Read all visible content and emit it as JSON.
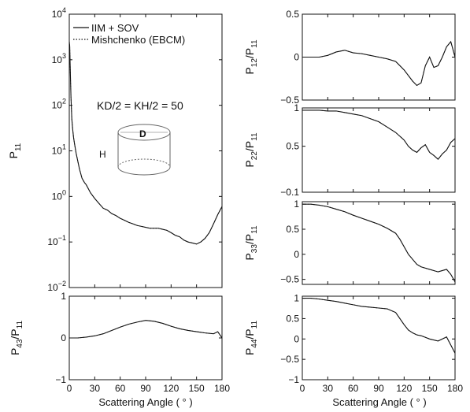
{
  "figure": {
    "left_xlabel": "Scattering Angle ( ° )",
    "right_xlabel": "Scattering Angle ( ° )",
    "annotation": "KD/2 = KH/2 = 50",
    "cylinder_label_top": "D",
    "cylinder_label_side": "H"
  },
  "legend": {
    "solid": "IIM + SOV",
    "dotted": "Mishchenko (EBCM)"
  },
  "chart_data": [
    {
      "id": "p11",
      "type": "line",
      "ylabel": "P_11",
      "yscale": "log",
      "ylim": [
        0.01,
        10000
      ],
      "xlim": [
        0,
        180
      ],
      "xticks": [
        0,
        30,
        60,
        90,
        120,
        150,
        180
      ],
      "yticks": [
        0.01,
        0.1,
        1,
        10,
        100,
        1000,
        10000
      ],
      "ytick_labels": [
        "10^-2",
        "10^-1",
        "10^0",
        "10^1",
        "10^2",
        "10^3",
        "10^4"
      ],
      "legend": "top-left",
      "series": [
        {
          "name": "IIM + SOV",
          "style": "solid",
          "x": [
            0,
            0.5,
            1,
            2,
            3,
            4,
            5,
            6,
            8,
            10,
            12,
            15,
            18,
            20,
            25,
            30,
            35,
            40,
            45,
            50,
            55,
            60,
            65,
            70,
            75,
            80,
            85,
            90,
            95,
            100,
            105,
            110,
            115,
            120,
            125,
            130,
            135,
            140,
            145,
            150,
            155,
            160,
            165,
            170,
            175,
            180
          ],
          "y": [
            2500,
            2000,
            800,
            150,
            50,
            30,
            20,
            15,
            9,
            6,
            4,
            2.5,
            2,
            1.8,
            1.2,
            0.9,
            0.7,
            0.55,
            0.5,
            0.42,
            0.38,
            0.33,
            0.3,
            0.27,
            0.25,
            0.23,
            0.22,
            0.21,
            0.2,
            0.2,
            0.2,
            0.19,
            0.18,
            0.16,
            0.14,
            0.13,
            0.11,
            0.1,
            0.095,
            0.09,
            0.1,
            0.12,
            0.16,
            0.25,
            0.4,
            0.6
          ]
        },
        {
          "name": "Mishchenko (EBCM)",
          "style": "dotted",
          "x": [
            0,
            0.5,
            1,
            2,
            3,
            4,
            5,
            6,
            8,
            10,
            12,
            15,
            18,
            20,
            25,
            30,
            35,
            40,
            45,
            50,
            55,
            60,
            65,
            70,
            75,
            80,
            85,
            90,
            95,
            100,
            105,
            110,
            115,
            120,
            125,
            130,
            135,
            140,
            145,
            150,
            155,
            160,
            165,
            170,
            175,
            180
          ],
          "y": [
            2500,
            2000,
            800,
            150,
            50,
            30,
            20,
            15,
            9,
            6,
            4,
            2.5,
            2,
            1.8,
            1.2,
            0.9,
            0.7,
            0.55,
            0.5,
            0.42,
            0.38,
            0.33,
            0.3,
            0.27,
            0.25,
            0.23,
            0.22,
            0.21,
            0.2,
            0.2,
            0.2,
            0.19,
            0.18,
            0.16,
            0.14,
            0.13,
            0.11,
            0.1,
            0.095,
            0.09,
            0.1,
            0.12,
            0.16,
            0.25,
            0.4,
            0.6
          ]
        }
      ]
    },
    {
      "id": "p43",
      "type": "line",
      "ylabel": "P_43/P_11",
      "ylim": [
        -1,
        1
      ],
      "xlim": [
        0,
        180
      ],
      "xticks": [
        0,
        30,
        60,
        90,
        120,
        150,
        180
      ],
      "yticks": [
        -1,
        0,
        1
      ],
      "ytick_labels": [
        "-1",
        "0",
        "1"
      ],
      "series": [
        {
          "name": "IIM + SOV",
          "style": "solid",
          "x": [
            0,
            10,
            20,
            30,
            40,
            50,
            60,
            70,
            80,
            90,
            100,
            110,
            120,
            130,
            140,
            150,
            160,
            170,
            175,
            180
          ],
          "y": [
            0,
            0,
            0.02,
            0.05,
            0.1,
            0.18,
            0.26,
            0.33,
            0.38,
            0.42,
            0.4,
            0.35,
            0.28,
            0.22,
            0.18,
            0.15,
            0.12,
            0.1,
            0.15,
            0.0
          ]
        },
        {
          "name": "Mishchenko (EBCM)",
          "style": "dotted",
          "x": [
            0,
            10,
            20,
            30,
            40,
            50,
            60,
            70,
            80,
            90,
            100,
            110,
            120,
            130,
            140,
            150,
            160,
            170,
            175,
            180
          ],
          "y": [
            0,
            0,
            0.02,
            0.05,
            0.1,
            0.18,
            0.26,
            0.33,
            0.38,
            0.42,
            0.4,
            0.35,
            0.28,
            0.22,
            0.18,
            0.15,
            0.12,
            0.1,
            0.15,
            0.0
          ]
        }
      ]
    },
    {
      "id": "p12",
      "type": "line",
      "ylabel": "P_12/P_11",
      "ylim": [
        -0.5,
        0.5
      ],
      "xlim": [
        0,
        180
      ],
      "xticks": [
        0,
        30,
        60,
        90,
        120,
        150,
        180
      ],
      "yticks": [
        -0.5,
        0,
        0.5
      ],
      "ytick_labels": [
        "-0.5",
        "0",
        "0.5"
      ],
      "series": [
        {
          "name": "IIM + SOV",
          "style": "solid",
          "x": [
            0,
            10,
            20,
            30,
            40,
            50,
            60,
            70,
            80,
            90,
            100,
            110,
            120,
            130,
            135,
            140,
            145,
            150,
            155,
            160,
            165,
            170,
            175,
            180
          ],
          "y": [
            0,
            0,
            0,
            0.02,
            0.06,
            0.08,
            0.05,
            0.04,
            0.02,
            0,
            -0.02,
            -0.05,
            -0.15,
            -0.28,
            -0.33,
            -0.3,
            -0.1,
            0.0,
            -0.12,
            -0.1,
            0.0,
            0.12,
            0.18,
            0.0
          ]
        },
        {
          "name": "Mishchenko (EBCM)",
          "style": "dotted",
          "x": [
            0,
            10,
            20,
            30,
            40,
            50,
            60,
            70,
            80,
            90,
            100,
            110,
            120,
            130,
            135,
            140,
            145,
            150,
            155,
            160,
            165,
            170,
            175,
            180
          ],
          "y": [
            0,
            0,
            0,
            0.02,
            0.06,
            0.08,
            0.05,
            0.04,
            0.02,
            0,
            -0.02,
            -0.05,
            -0.15,
            -0.28,
            -0.33,
            -0.3,
            -0.1,
            0.0,
            -0.12,
            -0.1,
            0.0,
            0.12,
            0.18,
            0.0
          ]
        }
      ]
    },
    {
      "id": "p22",
      "type": "line",
      "ylabel": "P_22/P_11",
      "ylim": [
        -0.1,
        1
      ],
      "xlim": [
        0,
        180
      ],
      "xticks": [
        0,
        30,
        60,
        90,
        120,
        150,
        180
      ],
      "yticks": [
        -0.1,
        0.5,
        1
      ],
      "ytick_labels": [
        "-0.1",
        "0.5",
        "1"
      ],
      "series": [
        {
          "name": "IIM + SOV",
          "style": "solid",
          "x": [
            0,
            10,
            20,
            30,
            40,
            50,
            60,
            70,
            80,
            90,
            100,
            110,
            120,
            125,
            130,
            135,
            140,
            145,
            150,
            155,
            160,
            165,
            170,
            175,
            180
          ],
          "y": [
            0.97,
            0.97,
            0.97,
            0.96,
            0.96,
            0.94,
            0.92,
            0.9,
            0.86,
            0.82,
            0.75,
            0.68,
            0.58,
            0.5,
            0.45,
            0.42,
            0.48,
            0.52,
            0.42,
            0.38,
            0.33,
            0.4,
            0.45,
            0.55,
            0.6
          ]
        },
        {
          "name": "Mishchenko (EBCM)",
          "style": "dotted",
          "x": [
            0,
            10,
            20,
            30,
            40,
            50,
            60,
            70,
            80,
            90,
            100,
            110,
            120,
            125,
            130,
            135,
            140,
            145,
            150,
            155,
            160,
            165,
            170,
            175,
            180
          ],
          "y": [
            0.97,
            0.97,
            0.97,
            0.96,
            0.96,
            0.94,
            0.92,
            0.9,
            0.86,
            0.82,
            0.75,
            0.68,
            0.58,
            0.5,
            0.45,
            0.42,
            0.48,
            0.52,
            0.42,
            0.38,
            0.33,
            0.4,
            0.45,
            0.55,
            0.6
          ]
        }
      ]
    },
    {
      "id": "p33",
      "type": "line",
      "ylabel": "P_33/P_11",
      "ylim": [
        -0.6,
        1.05
      ],
      "xlim": [
        0,
        180
      ],
      "xticks": [
        0,
        30,
        60,
        90,
        120,
        150,
        180
      ],
      "yticks": [
        -0.5,
        0,
        0.5,
        1
      ],
      "ytick_labels": [
        "-0.5",
        "0",
        "0.5",
        "1"
      ],
      "series": [
        {
          "name": "IIM + SOV",
          "style": "solid",
          "x": [
            0,
            10,
            20,
            30,
            40,
            50,
            60,
            70,
            80,
            90,
            100,
            110,
            115,
            120,
            125,
            130,
            135,
            140,
            150,
            160,
            170,
            175,
            180
          ],
          "y": [
            1,
            1,
            0.98,
            0.95,
            0.9,
            0.85,
            0.78,
            0.72,
            0.66,
            0.6,
            0.52,
            0.42,
            0.3,
            0.15,
            0.0,
            -0.1,
            -0.2,
            -0.25,
            -0.3,
            -0.35,
            -0.3,
            -0.4,
            -0.55
          ]
        },
        {
          "name": "Mishchenko (EBCM)",
          "style": "dotted",
          "x": [
            0,
            10,
            20,
            30,
            40,
            50,
            60,
            70,
            80,
            90,
            100,
            110,
            115,
            120,
            125,
            130,
            135,
            140,
            150,
            160,
            170,
            175,
            180
          ],
          "y": [
            1,
            1,
            0.98,
            0.95,
            0.9,
            0.85,
            0.78,
            0.72,
            0.66,
            0.6,
            0.52,
            0.42,
            0.3,
            0.15,
            0.0,
            -0.1,
            -0.2,
            -0.25,
            -0.3,
            -0.35,
            -0.3,
            -0.4,
            -0.55
          ]
        }
      ]
    },
    {
      "id": "p44",
      "type": "line",
      "ylabel": "P_44/P_11",
      "ylim": [
        -1,
        1.05
      ],
      "xlim": [
        0,
        180
      ],
      "xticks": [
        0,
        30,
        60,
        90,
        120,
        150,
        180
      ],
      "yticks": [
        -1,
        -0.5,
        0,
        0.5,
        1
      ],
      "ytick_labels": [
        "-1",
        "-0.5",
        "0",
        "0.5",
        "1"
      ],
      "series": [
        {
          "name": "IIM + SOV",
          "style": "solid",
          "x": [
            0,
            10,
            20,
            30,
            40,
            50,
            60,
            70,
            80,
            90,
            100,
            110,
            115,
            120,
            125,
            130,
            135,
            140,
            150,
            160,
            170,
            175,
            180
          ],
          "y": [
            1,
            1,
            0.98,
            0.95,
            0.92,
            0.88,
            0.84,
            0.8,
            0.78,
            0.76,
            0.74,
            0.65,
            0.5,
            0.35,
            0.22,
            0.15,
            0.1,
            0.08,
            0.0,
            -0.05,
            0.05,
            -0.15,
            -0.35
          ]
        },
        {
          "name": "Mishchenko (EBCM)",
          "style": "dotted",
          "x": [
            0,
            10,
            20,
            30,
            40,
            50,
            60,
            70,
            80,
            90,
            100,
            110,
            115,
            120,
            125,
            130,
            135,
            140,
            150,
            160,
            170,
            175,
            180
          ],
          "y": [
            1,
            1,
            0.98,
            0.95,
            0.92,
            0.88,
            0.84,
            0.8,
            0.78,
            0.76,
            0.74,
            0.65,
            0.5,
            0.35,
            0.22,
            0.15,
            0.1,
            0.08,
            0.0,
            -0.05,
            0.05,
            -0.15,
            -0.35
          ]
        }
      ]
    }
  ]
}
